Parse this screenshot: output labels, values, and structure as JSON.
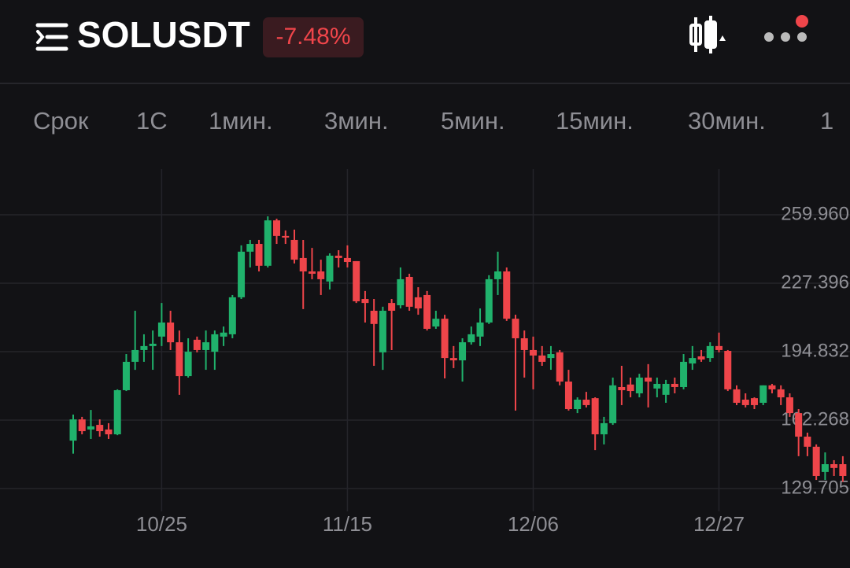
{
  "header": {
    "symbol": "SOLUSDT",
    "change": "-7.48%"
  },
  "tabs": [
    "Срок",
    "1С",
    "1мин.",
    "3мин.",
    "5мин.",
    "15мин.",
    "30мин.",
    "1"
  ],
  "chart_data": {
    "type": "candlestick",
    "up_color": "#20b26c",
    "down_color": "#ef454a",
    "grid": true,
    "categories": [
      null,
      null,
      null,
      null,
      null,
      null,
      null,
      null,
      null,
      null,
      "10/25",
      null,
      null,
      null,
      null,
      null,
      null,
      null,
      null,
      null,
      null,
      null,
      null,
      null,
      null,
      null,
      null,
      null,
      null,
      null,
      null,
      "11/15",
      null,
      null,
      null,
      null,
      null,
      null,
      null,
      null,
      null,
      null,
      null,
      null,
      null,
      null,
      null,
      null,
      null,
      null,
      null,
      null,
      "12/06",
      null,
      null,
      null,
      null,
      null,
      null,
      null,
      null,
      null,
      null,
      null,
      null,
      null,
      null,
      null,
      null,
      null,
      null,
      null,
      null,
      "12/27",
      null,
      null,
      null,
      null,
      null,
      null,
      null,
      null,
      null,
      null,
      null,
      null,
      null,
      null
    ],
    "open": [
      152.5,
      162.6,
      157.8,
      160,
      157.8,
      155.5,
      176.5,
      190,
      195.6,
      197.5,
      202,
      208.7,
      199.3,
      183.2,
      200.5,
      195.6,
      194.8,
      202,
      203.1,
      220.7,
      242.4,
      246.1,
      235.7,
      257.3,
      249.9,
      248,
      239.4,
      233,
      233,
      228.2,
      240.5,
      239.4,
      237.9,
      219.9,
      214.3,
      194.5,
      218,
      216.9,
      230.4,
      220.7,
      221.8,
      206.8,
      210.5,
      191.8,
      190.7,
      199.3,
      202,
      208.7,
      229.3,
      233,
      210.5,
      201.2,
      195.6,
      193,
      191.8,
      194.5,
      180.6,
      167.5,
      172,
      172.7,
      155.5,
      160.8,
      178,
      179.2,
      175,
      182.5,
      177.3,
      174.3,
      179.5,
      178,
      189.2,
      192.6,
      191.8,
      197.5,
      195.2,
      176.9,
      172,
      172.7,
      170.5,
      178.8,
      176.9,
      173.1,
      165.6,
      154.4,
      149.6,
      137.6,
      141.3,
      141.3
    ],
    "high": [
      164.9,
      163.8,
      167.1,
      162.6,
      160.8,
      176.9,
      193.7,
      214.3,
      203.1,
      204.9,
      218,
      214.3,
      204.9,
      201.2,
      202,
      204.9,
      204.9,
      206.8,
      221.8,
      245.4,
      248,
      248,
      259.2,
      258.1,
      252.5,
      252.9,
      248,
      244.2,
      238.6,
      241.6,
      243.1,
      245.4,
      237.9,
      223.7,
      219.9,
      216.2,
      219.9,
      234.9,
      231.9,
      225.5,
      223.7,
      214.3,
      212.4,
      197.5,
      201.2,
      206.8,
      215.4,
      231.2,
      242.4,
      234.9,
      212.4,
      204.9,
      202,
      197.5,
      197.5,
      195.6,
      186.2,
      173.1,
      175.7,
      173.1,
      163.8,
      182.5,
      188.1,
      182.5,
      184.3,
      188.9,
      182.5,
      181.4,
      182.5,
      193.7,
      197.5,
      195.6,
      199.3,
      203.9,
      195.6,
      178.8,
      175,
      173.1,
      178.8,
      179.5,
      178.8,
      175,
      167.5,
      156.3,
      150.7,
      146.9,
      143.2,
      145.1
    ],
    "low": [
      146.3,
      155.5,
      153.3,
      154.4,
      153.3,
      155.1,
      176.1,
      186.2,
      190,
      186.2,
      197.5,
      195.6,
      174.3,
      182.5,
      194.5,
      186.2,
      186.2,
      197.5,
      201.2,
      219.9,
      234.9,
      233,
      234.9,
      246.1,
      246.1,
      236.8,
      215.1,
      229.3,
      221.8,
      224.4,
      234.9,
      234.9,
      218,
      208.7,
      188.1,
      186.2,
      195.6,
      215.4,
      214.3,
      212.4,
      204.9,
      205.7,
      182.1,
      187,
      180.6,
      198.2,
      197.5,
      208,
      221.8,
      209.5,
      166.8,
      182.5,
      176.9,
      188.1,
      186.2,
      178.8,
      166.8,
      165.6,
      168.3,
      148,
      150.7,
      160,
      169.4,
      173.1,
      173.1,
      168.3,
      173.1,
      170.5,
      175,
      176.9,
      186.2,
      190,
      190,
      194.5,
      176.1,
      169.4,
      168.3,
      167.5,
      169.4,
      175,
      169.4,
      163.8,
      145.1,
      145.1,
      133.8,
      133.8,
      135.7,
      132.9
    ],
    "close": [
      162.6,
      157,
      159.3,
      157,
      155.5,
      176.5,
      190,
      195.6,
      197.5,
      198.6,
      208.7,
      199.3,
      183.2,
      194.8,
      195.6,
      199.3,
      203.1,
      203.9,
      220.7,
      242.4,
      246.1,
      235.7,
      257.3,
      249.9,
      249.1,
      238.6,
      233,
      231.9,
      229.3,
      240.5,
      239.4,
      237.5,
      218.8,
      218,
      208,
      214.3,
      214.3,
      229.3,
      216.2,
      215.4,
      205.7,
      210.5,
      191.8,
      190.7,
      199.3,
      203.1,
      208.7,
      229.3,
      233,
      210.5,
      201.2,
      195.6,
      193,
      190,
      193.7,
      180.6,
      167.5,
      172,
      169.4,
      155.5,
      160.8,
      178.8,
      176.5,
      176.1,
      182.5,
      180.6,
      179.5,
      179.5,
      178,
      190,
      191.8,
      191.1,
      197.5,
      195.6,
      176.9,
      170.5,
      169.4,
      169.4,
      178.8,
      176.9,
      173.1,
      165.6,
      154.4,
      149.6,
      135.7,
      141.3,
      139.5,
      135.7
    ],
    "ylim": [
      118.85,
      281.67
    ],
    "yticks": [
      129.705,
      162.268,
      194.832,
      227.396,
      {
        "value": 259.96,
        "label": "259.960"
      }
    ]
  }
}
